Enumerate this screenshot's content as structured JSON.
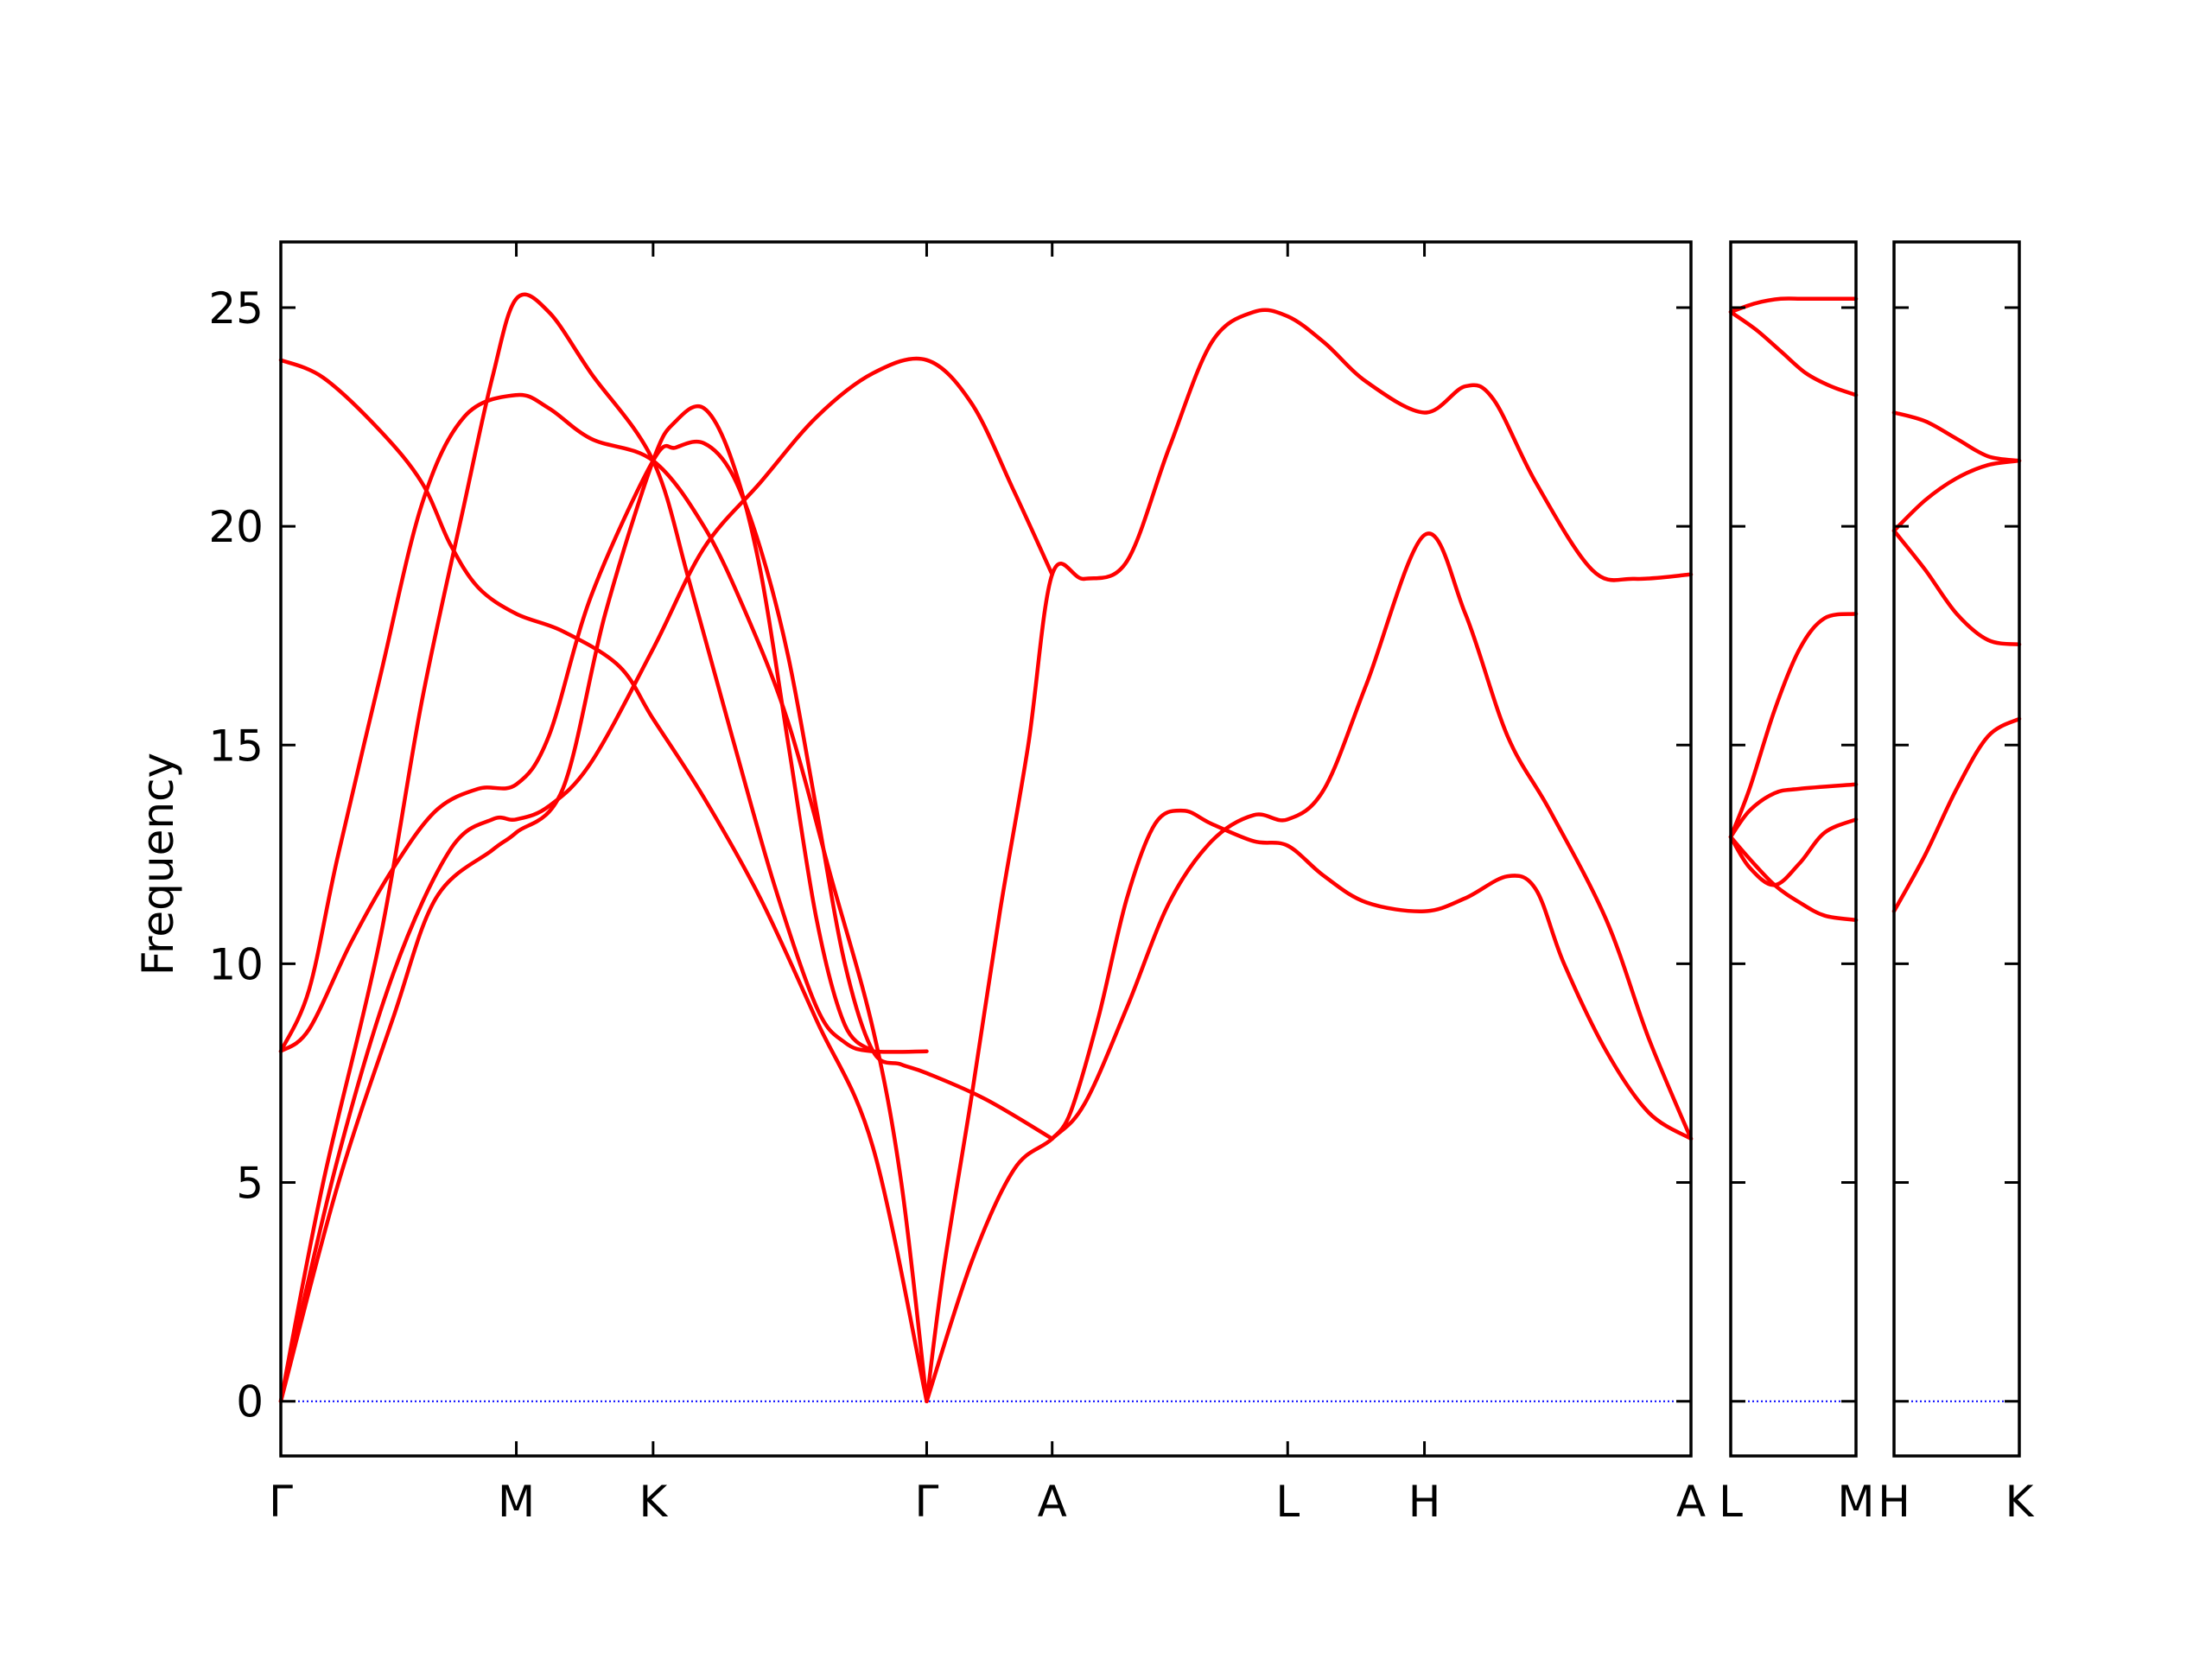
{
  "chart_data": {
    "type": "line",
    "ylabel": "Frequency",
    "ylim": [
      -1.25,
      26.5
    ],
    "yticks": [
      0,
      5,
      10,
      15,
      20,
      25
    ],
    "grid": false,
    "legend": "none",
    "colors": {
      "bands": "#ff0000",
      "zero_line": "#0000ff",
      "axes": "#000000"
    },
    "panels": [
      {
        "xlim": [
          0,
          1
        ],
        "ticks": [
          {
            "label": "Γ",
            "x": 0
          },
          {
            "label": "M",
            "x": 0.167
          },
          {
            "label": "K",
            "x": 0.264
          },
          {
            "label": "Γ",
            "x": 0.458
          },
          {
            "label": "A",
            "x": 0.547
          },
          {
            "label": "L",
            "x": 0.714
          },
          {
            "label": "H",
            "x": 0.811
          },
          {
            "label": "A",
            "x": 1
          }
        ],
        "series": [
          {
            "points": [
              [
                0,
                23.8
              ],
              [
                0.03,
                23.4
              ],
              [
                0.07,
                22.2
              ],
              [
                0.1,
                21.0
              ],
              [
                0.12,
                19.6
              ],
              [
                0.14,
                18.6
              ],
              [
                0.167,
                18.0
              ],
              [
                0.2,
                17.6
              ],
              [
                0.24,
                16.8
              ],
              [
                0.264,
                15.6
              ],
              [
                0.3,
                13.8
              ],
              [
                0.34,
                11.5
              ],
              [
                0.38,
                8.7
              ],
              [
                0.42,
                5.8
              ],
              [
                0.458,
                0
              ]
            ]
          },
          {
            "points": [
              [
                0,
                0
              ],
              [
                0.03,
                5.0
              ],
              [
                0.07,
                10.5
              ],
              [
                0.1,
                16.0
              ],
              [
                0.13,
                20.5
              ],
              [
                0.15,
                23.4
              ],
              [
                0.167,
                25.2
              ],
              [
                0.19,
                24.9
              ],
              [
                0.22,
                23.5
              ],
              [
                0.264,
                21.5
              ],
              [
                0.29,
                18.7
              ],
              [
                0.32,
                15.2
              ],
              [
                0.35,
                11.8
              ],
              [
                0.38,
                9.0
              ],
              [
                0.4,
                8.2
              ],
              [
                0.42,
                8.0
              ],
              [
                0.458,
                8.0
              ]
            ]
          },
          {
            "points": [
              [
                0,
                0
              ],
              [
                0.04,
                5.5
              ],
              [
                0.08,
                9.8
              ],
              [
                0.12,
                12.6
              ],
              [
                0.15,
                13.3
              ],
              [
                0.167,
                13.3
              ],
              [
                0.19,
                13.6
              ],
              [
                0.22,
                14.6
              ],
              [
                0.264,
                17.2
              ],
              [
                0.3,
                19.5
              ],
              [
                0.34,
                21.0
              ],
              [
                0.38,
                22.5
              ],
              [
                0.42,
                23.5
              ],
              [
                0.458,
                23.8
              ],
              [
                0.49,
                22.8
              ],
              [
                0.52,
                20.8
              ],
              [
                0.547,
                18.9
              ]
            ]
          },
          {
            "points": [
              [
                0,
                0
              ],
              [
                0.04,
                4.9
              ],
              [
                0.08,
                8.8
              ],
              [
                0.11,
                11.5
              ],
              [
                0.15,
                12.6
              ],
              [
                0.167,
                13.0
              ],
              [
                0.2,
                14.0
              ],
              [
                0.23,
                18.0
              ],
              [
                0.264,
                21.5
              ],
              [
                0.28,
                22.4
              ],
              [
                0.3,
                22.7
              ],
              [
                0.32,
                21.5
              ],
              [
                0.34,
                19.0
              ],
              [
                0.36,
                15.0
              ],
              [
                0.38,
                11.0
              ],
              [
                0.4,
                8.6
              ],
              [
                0.42,
                8.0
              ]
            ]
          },
          {
            "points": [
              [
                0,
                8.0
              ],
              [
                0.02,
                8.5
              ],
              [
                0.05,
                10.5
              ],
              [
                0.08,
                12.2
              ],
              [
                0.11,
                13.5
              ],
              [
                0.14,
                14.0
              ],
              [
                0.167,
                14.1
              ],
              [
                0.19,
                15.2
              ],
              [
                0.22,
                18.4
              ],
              [
                0.264,
                21.5
              ],
              [
                0.28,
                21.8
              ],
              [
                0.3,
                21.9
              ],
              [
                0.32,
                21.2
              ],
              [
                0.34,
                19.5
              ],
              [
                0.36,
                17.0
              ],
              [
                0.38,
                13.5
              ],
              [
                0.4,
                10.0
              ],
              [
                0.42,
                8.0
              ],
              [
                0.44,
                7.7
              ],
              [
                0.458,
                7.5
              ],
              [
                0.5,
                6.9
              ],
              [
                0.547,
                6.0
              ]
            ]
          },
          {
            "points": [
              [
                0,
                8.0
              ],
              [
                0.02,
                9.4
              ],
              [
                0.04,
                12.4
              ],
              [
                0.07,
                16.5
              ],
              [
                0.1,
                20.5
              ],
              [
                0.13,
                22.5
              ],
              [
                0.167,
                23.0
              ],
              [
                0.19,
                22.7
              ],
              [
                0.22,
                22.0
              ],
              [
                0.264,
                21.5
              ],
              [
                0.3,
                20.0
              ],
              [
                0.33,
                18.0
              ],
              [
                0.36,
                15.5
              ],
              [
                0.39,
                12.0
              ],
              [
                0.42,
                8.5
              ],
              [
                0.44,
                5.0
              ],
              [
                0.458,
                0
              ]
            ]
          },
          {
            "points": [
              [
                0.458,
                0
              ],
              [
                0.49,
                3.2
              ],
              [
                0.52,
                5.3
              ],
              [
                0.547,
                6.0
              ],
              [
                0.57,
                6.8
              ],
              [
                0.6,
                9.0
              ],
              [
                0.63,
                11.4
              ],
              [
                0.66,
                12.8
              ],
              [
                0.69,
                13.4
              ],
              [
                0.714,
                13.3
              ],
              [
                0.74,
                14.0
              ],
              [
                0.77,
                16.4
              ],
              [
                0.811,
                19.8
              ],
              [
                0.84,
                18.0
              ],
              [
                0.87,
                15.2
              ],
              [
                0.9,
                13.5
              ],
              [
                0.94,
                11.0
              ],
              [
                0.97,
                8.3
              ],
              [
                1.0,
                6.0
              ]
            ]
          },
          {
            "points": [
              [
                0.458,
                0
              ],
              [
                0.47,
                3.0
              ],
              [
                0.49,
                7.0
              ],
              [
                0.51,
                11.2
              ],
              [
                0.53,
                15.0
              ],
              [
                0.547,
                18.9
              ],
              [
                0.57,
                18.8
              ],
              [
                0.6,
                19.2
              ],
              [
                0.63,
                21.8
              ],
              [
                0.66,
                24.2
              ],
              [
                0.69,
                24.9
              ],
              [
                0.714,
                24.8
              ],
              [
                0.74,
                24.2
              ],
              [
                0.77,
                23.3
              ],
              [
                0.811,
                22.6
              ],
              [
                0.84,
                23.2
              ],
              [
                0.86,
                22.9
              ],
              [
                0.89,
                21.0
              ],
              [
                0.93,
                19.0
              ],
              [
                0.96,
                18.8
              ],
              [
                1.0,
                18.9
              ]
            ]
          },
          {
            "points": [
              [
                0.547,
                6.0
              ],
              [
                0.56,
                6.6
              ],
              [
                0.58,
                8.8
              ],
              [
                0.6,
                11.5
              ],
              [
                0.62,
                13.2
              ],
              [
                0.64,
                13.5
              ],
              [
                0.66,
                13.2
              ],
              [
                0.69,
                12.8
              ],
              [
                0.714,
                12.7
              ],
              [
                0.74,
                12.0
              ],
              [
                0.77,
                11.4
              ],
              [
                0.811,
                11.2
              ],
              [
                0.84,
                11.5
              ],
              [
                0.87,
                12.0
              ],
              [
                0.89,
                11.7
              ],
              [
                0.91,
                10.0
              ],
              [
                0.94,
                8.0
              ],
              [
                0.97,
                6.6
              ],
              [
                1.0,
                6.0
              ]
            ]
          }
        ]
      },
      {
        "xlim": [
          0,
          1
        ],
        "ticks": [
          {
            "label": "L",
            "x": 0
          },
          {
            "label": "M",
            "x": 1
          }
        ],
        "series": [
          {
            "points": [
              [
                0,
                24.9
              ],
              [
                0.2,
                25.1
              ],
              [
                0.4,
                25.2
              ],
              [
                0.6,
                25.2
              ],
              [
                1,
                25.2
              ]
            ]
          },
          {
            "points": [
              [
                0,
                24.9
              ],
              [
                0.2,
                24.5
              ],
              [
                0.4,
                24.0
              ],
              [
                0.6,
                23.5
              ],
              [
                0.8,
                23.2
              ],
              [
                1,
                23.0
              ]
            ]
          },
          {
            "points": [
              [
                0,
                12.9
              ],
              [
                0.15,
                14.0
              ],
              [
                0.35,
                15.8
              ],
              [
                0.55,
                17.2
              ],
              [
                0.75,
                17.9
              ],
              [
                1,
                18.0
              ]
            ]
          },
          {
            "points": [
              [
                0,
                12.9
              ],
              [
                0.15,
                13.5
              ],
              [
                0.35,
                13.9
              ],
              [
                0.55,
                14.0
              ],
              [
                1,
                14.1
              ]
            ]
          },
          {
            "points": [
              [
                0,
                12.9
              ],
              [
                0.15,
                12.2
              ],
              [
                0.35,
                11.8
              ],
              [
                0.55,
                12.3
              ],
              [
                0.75,
                13.0
              ],
              [
                1,
                13.3
              ]
            ]
          },
          {
            "points": [
              [
                0,
                12.9
              ],
              [
                0.15,
                12.4
              ],
              [
                0.35,
                11.8
              ],
              [
                0.55,
                11.4
              ],
              [
                0.75,
                11.1
              ],
              [
                1,
                11.0
              ]
            ]
          }
        ]
      },
      {
        "xlim": [
          0,
          1
        ],
        "ticks": [
          {
            "label": "H",
            "x": 0
          },
          {
            "label": "K",
            "x": 1
          }
        ],
        "series": [
          {
            "points": [
              [
                0,
                22.6
              ],
              [
                0.25,
                22.4
              ],
              [
                0.5,
                22.0
              ],
              [
                0.75,
                21.6
              ],
              [
                1,
                21.5
              ]
            ]
          },
          {
            "points": [
              [
                0,
                19.9
              ],
              [
                0.25,
                20.6
              ],
              [
                0.5,
                21.1
              ],
              [
                0.75,
                21.4
              ],
              [
                1,
                21.5
              ]
            ]
          },
          {
            "points": [
              [
                0,
                19.9
              ],
              [
                0.25,
                19.0
              ],
              [
                0.5,
                18.0
              ],
              [
                0.75,
                17.4
              ],
              [
                1,
                17.3
              ]
            ]
          },
          {
            "points": [
              [
                0,
                11.2
              ],
              [
                0.25,
                12.5
              ],
              [
                0.5,
                14.0
              ],
              [
                0.75,
                15.2
              ],
              [
                1,
                15.6
              ]
            ]
          }
        ]
      }
    ]
  }
}
